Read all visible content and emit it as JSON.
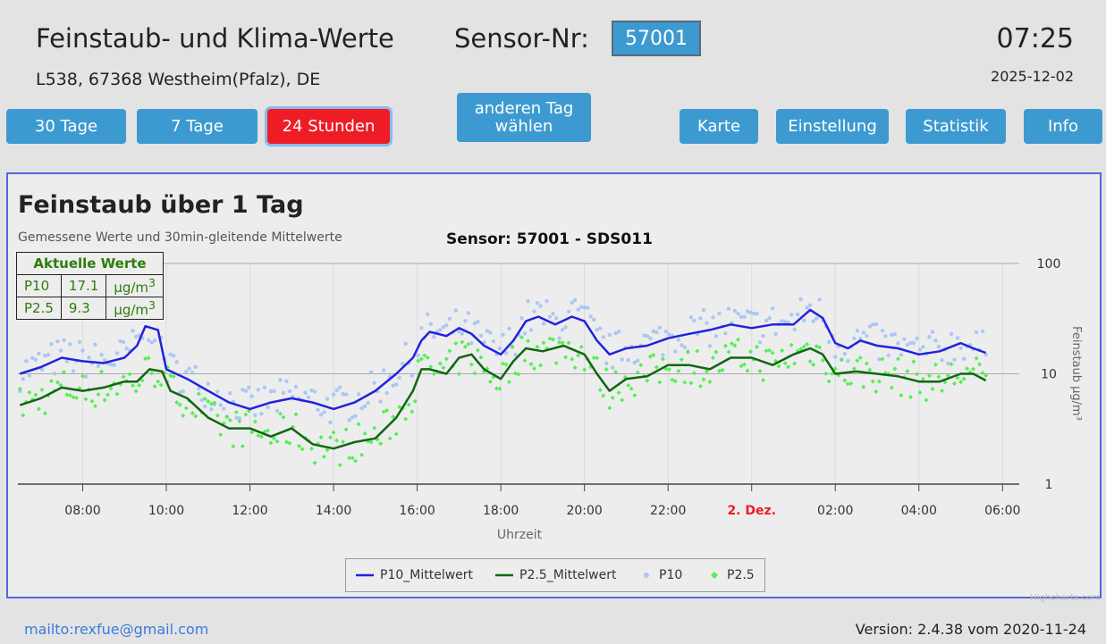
{
  "header": {
    "title": "Feinstaub- und Klima-Werte",
    "sensor_label": "Sensor-Nr:",
    "sensor_value": "57001",
    "time": "07:25",
    "date": "2025-12-02",
    "address": "L538, 67368 Westheim(Pfalz), DE"
  },
  "buttons": {
    "b30": "30 Tage",
    "b7": "7 Tage",
    "b24": "24 Stunden",
    "other_day_1": "anderen Tag",
    "other_day_2": "wählen",
    "map": "Karte",
    "settings": "Einstellung",
    "stats": "Statistik",
    "info": "Info"
  },
  "chart": {
    "title": "Feinstaub über 1 Tag",
    "subtitle": "Gemessene Werte und 30min-gleitende Mittelwerte",
    "sensor_title": "Sensor: 57001 - SDS011",
    "current": {
      "header": "Aktuelle Werte",
      "rows": [
        {
          "name": "P10",
          "value": "17.1",
          "unit": "µg/m",
          "sup": "3"
        },
        {
          "name": "P2.5",
          "value": "9.3",
          "unit": "µg/m",
          "sup": "3"
        }
      ]
    },
    "credit": "Highcharts.com"
  },
  "chart_data": {
    "type": "line",
    "xlabel": "Uhrzeit",
    "ylabel": "Feinstaub µg/m³",
    "y_scale": "log",
    "ylim": [
      1,
      100
    ],
    "y_ticks": [
      "1",
      "10",
      "100"
    ],
    "x_ticks": [
      "08:00",
      "10:00",
      "12:00",
      "14:00",
      "16:00",
      "18:00",
      "20:00",
      "22:00",
      "2. Dez.",
      "02:00",
      "04:00",
      "06:00"
    ],
    "x_ticks_hours": [
      8,
      10,
      12,
      14,
      16,
      18,
      20,
      22,
      24,
      26,
      28,
      30
    ],
    "xlim_hours": [
      6.45,
      30.4
    ],
    "day_break_label_color": "#ee1c25",
    "legend_position": "bottom-center",
    "series": [
      {
        "name": "P10_Mittelwert",
        "style": "line",
        "color": "#2222dd",
        "x": [
          6.5,
          7.0,
          7.5,
          8.0,
          8.5,
          9.0,
          9.3,
          9.5,
          9.8,
          10.0,
          10.5,
          11.0,
          11.5,
          12.0,
          12.5,
          13.0,
          13.5,
          14.0,
          14.5,
          15.0,
          15.5,
          15.9,
          16.1,
          16.3,
          16.7,
          17.0,
          17.3,
          17.6,
          18.0,
          18.3,
          18.6,
          18.9,
          19.3,
          19.7,
          20.0,
          20.3,
          20.6,
          21.0,
          21.5,
          22.0,
          22.5,
          23.0,
          23.5,
          24.0,
          24.5,
          25.0,
          25.4,
          25.7,
          26.0,
          26.3,
          26.6,
          27.0,
          27.5,
          28.0,
          28.5,
          29.0,
          29.3,
          29.6
        ],
        "y": [
          10,
          11.5,
          14,
          13,
          12.5,
          14,
          18,
          27,
          25,
          11,
          9,
          7,
          5.5,
          4.8,
          5.5,
          6,
          5.5,
          4.8,
          5.5,
          7,
          10,
          14,
          20,
          24,
          22,
          26,
          23,
          18,
          15,
          20,
          30,
          33,
          28,
          33,
          30,
          20,
          15,
          17,
          18,
          21,
          23,
          25,
          28,
          26,
          28,
          28,
          38,
          32,
          19,
          17,
          20,
          18,
          17,
          15,
          16,
          19,
          17,
          15.5
        ]
      },
      {
        "name": "P2.5_Mittelwert",
        "style": "line",
        "color": "#116611",
        "x": [
          6.5,
          7.0,
          7.5,
          8.0,
          8.5,
          9.0,
          9.3,
          9.6,
          9.9,
          10.1,
          10.5,
          11.0,
          11.5,
          12.0,
          12.5,
          13.0,
          13.5,
          14.0,
          14.5,
          15.0,
          15.5,
          15.9,
          16.1,
          16.3,
          16.7,
          17.0,
          17.3,
          17.6,
          18.0,
          18.3,
          18.6,
          19.0,
          19.5,
          20.0,
          20.3,
          20.6,
          21.0,
          21.5,
          22.0,
          22.5,
          23.0,
          23.5,
          24.0,
          24.5,
          25.0,
          25.4,
          25.7,
          26.0,
          26.5,
          27.0,
          27.5,
          28.0,
          28.5,
          29.0,
          29.3,
          29.6
        ],
        "y": [
          5.2,
          6,
          7.5,
          7,
          7.5,
          8.5,
          8.5,
          11,
          10.5,
          7,
          6,
          4,
          3.2,
          3.2,
          2.7,
          3.2,
          2.3,
          2.1,
          2.4,
          2.6,
          4,
          7,
          11,
          11,
          10,
          14,
          15,
          11,
          9,
          13,
          17,
          16,
          18,
          15,
          10,
          7,
          9,
          9.5,
          12,
          12,
          11,
          14,
          14,
          12,
          15,
          17,
          15,
          10,
          10.5,
          10,
          9.5,
          8.5,
          8.5,
          10,
          10,
          8.7
        ]
      },
      {
        "name": "P10",
        "style": "points",
        "color": "#aac8f4"
      },
      {
        "name": "P2.5",
        "style": "points",
        "color": "#55ee55"
      }
    ]
  },
  "footer": {
    "mail": "mailto:rexfue@gmail.com",
    "version": "Version: 2.4.38 vom 2020-11-24"
  }
}
